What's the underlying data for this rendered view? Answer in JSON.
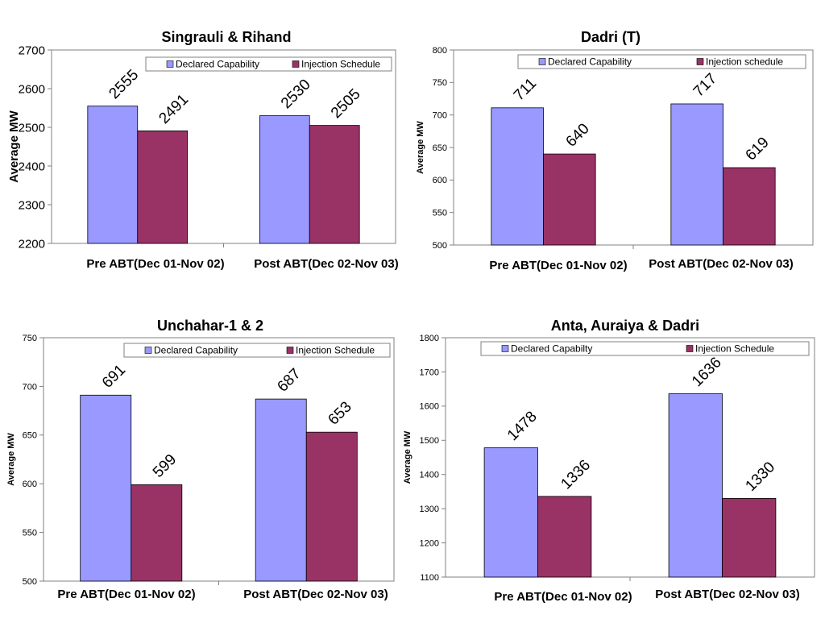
{
  "colors": {
    "declared": "#9999ff",
    "injection": "#993366",
    "axis": "#808080",
    "plot_border": "#808080",
    "text": "#000000"
  },
  "chart_data": [
    {
      "type": "bar",
      "title": "Singrauli & Rihand",
      "ylabel": "Average MW",
      "categories": [
        "Pre ABT(Dec 01-Nov 02)",
        "Post ABT(Dec 02-Nov 03)"
      ],
      "series": [
        {
          "name": "Declared Capability",
          "values": [
            2555,
            2530
          ]
        },
        {
          "name": "Injection Schedule",
          "values": [
            2491,
            2505
          ]
        }
      ],
      "ylim": [
        2200,
        2700
      ],
      "yticks": [
        2200,
        2300,
        2400,
        2500,
        2600,
        2700
      ],
      "legend": "top-right",
      "grid": false
    },
    {
      "type": "bar",
      "title": "Dadri (T)",
      "ylabel": "Average MW",
      "categories": [
        "Pre ABT(Dec 01-Nov 02)",
        "Post ABT(Dec 02-Nov 03)"
      ],
      "series": [
        {
          "name": "Declared Capability",
          "values": [
            711,
            717
          ]
        },
        {
          "name": "Injection schedule",
          "values": [
            640,
            619
          ]
        }
      ],
      "ylim": [
        500,
        800
      ],
      "yticks": [
        500,
        550,
        600,
        650,
        700,
        750,
        800
      ],
      "legend": "top-right",
      "grid": false
    },
    {
      "type": "bar",
      "title": "Unchahar-1 & 2",
      "ylabel": "Average MW",
      "categories": [
        "Pre ABT(Dec 01-Nov 02)",
        "Post ABT(Dec 02-Nov 03)"
      ],
      "series": [
        {
          "name": "Declared Capability",
          "values": [
            691,
            687
          ]
        },
        {
          "name": "Injection Schedule",
          "values": [
            599,
            653
          ]
        }
      ],
      "ylim": [
        500,
        750
      ],
      "yticks": [
        500,
        550,
        600,
        650,
        700,
        750
      ],
      "legend": "top-right",
      "grid": false
    },
    {
      "type": "bar",
      "title": "Anta, Auraiya & Dadri",
      "ylabel": "Average MW",
      "categories": [
        "Pre ABT(Dec 01-Nov 02)",
        "Post ABT(Dec 02-Nov 03)"
      ],
      "series": [
        {
          "name": "Declared Capabilty",
          "values": [
            1478,
            1636
          ]
        },
        {
          "name": "Injection Schedule",
          "values": [
            1336,
            1330
          ]
        }
      ],
      "ylim": [
        1100,
        1800
      ],
      "yticks": [
        1100,
        1200,
        1300,
        1400,
        1500,
        1600,
        1700,
        1800
      ],
      "legend": "top-right",
      "grid": false
    }
  ]
}
